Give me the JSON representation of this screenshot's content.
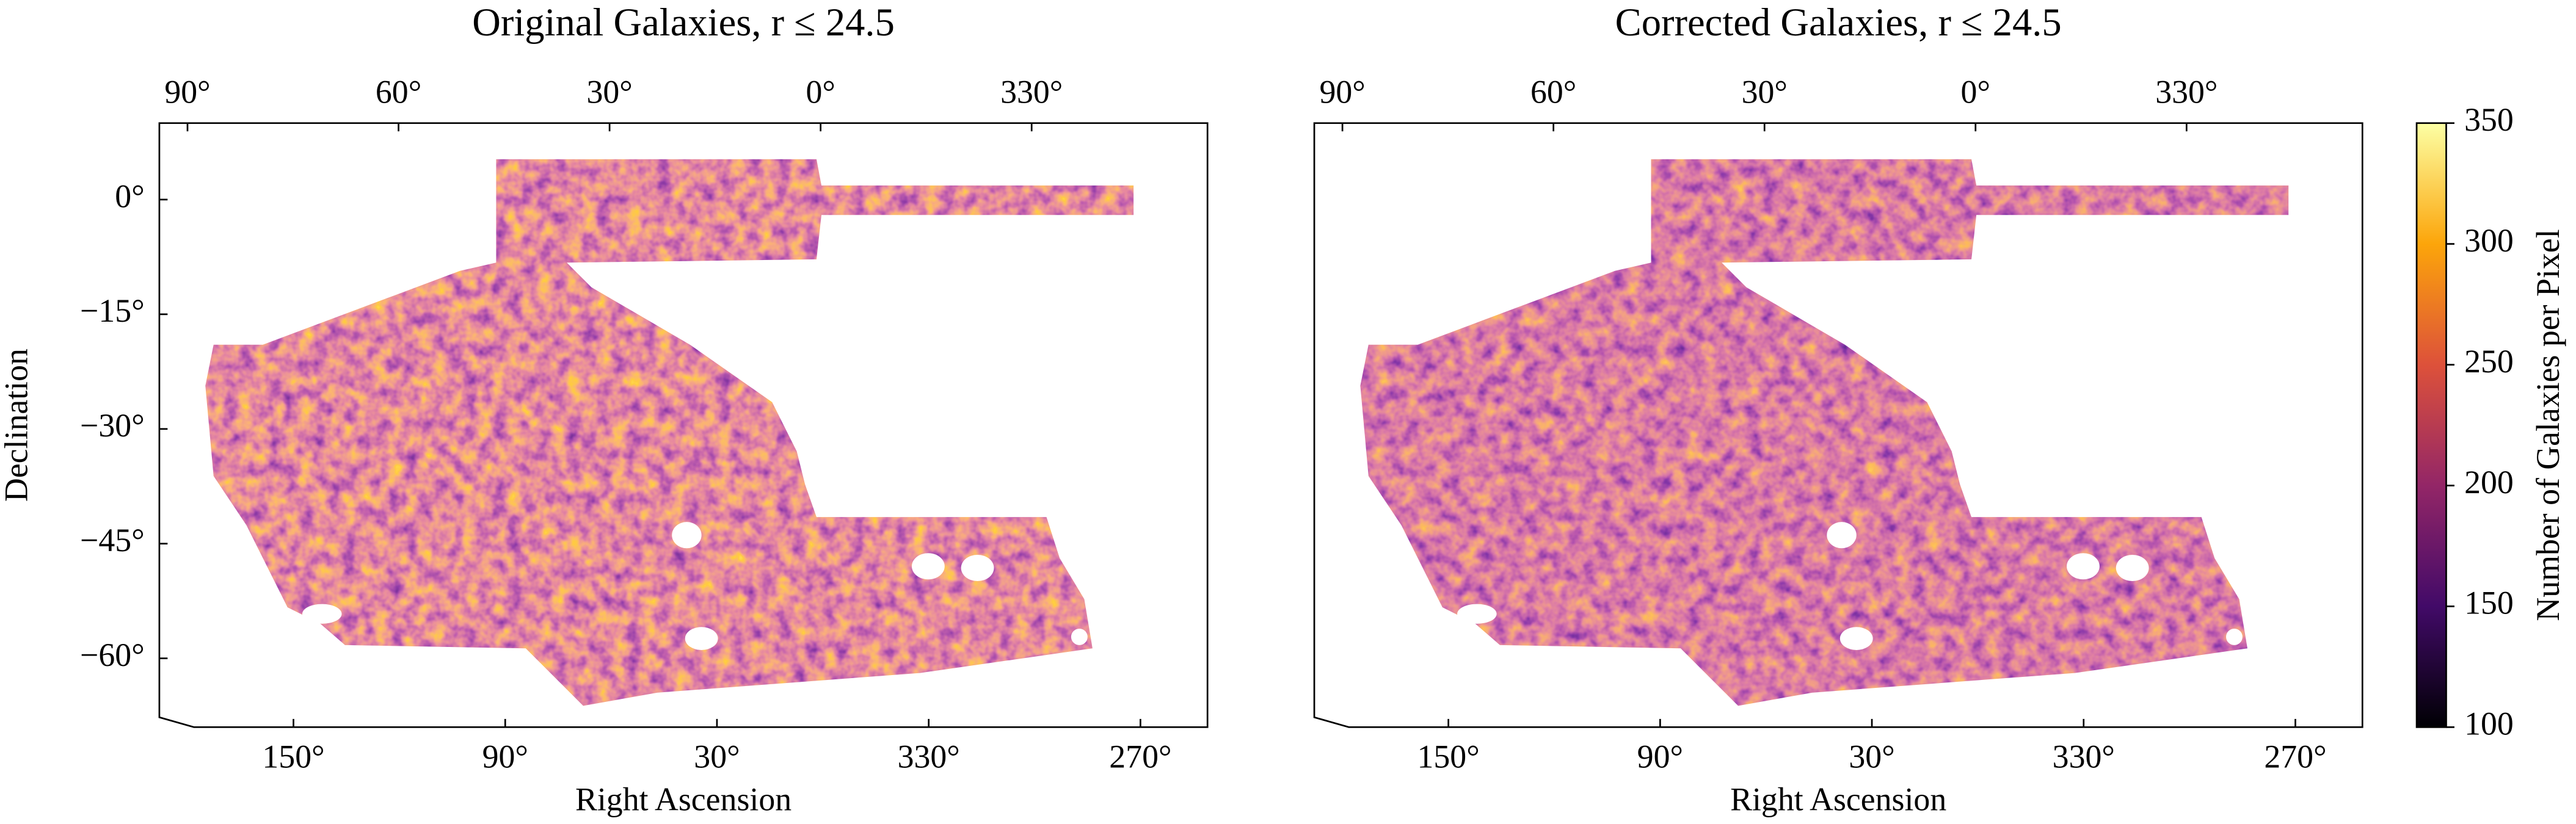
{
  "chart_data": [
    {
      "type": "map",
      "title": "Original Galaxies, r ≤ 24.5",
      "xlabel": "Right Ascension",
      "ylabel": "Declination",
      "xlim": [
        188,
        251
      ],
      "xticks": [
        {
          "value": 150,
          "label": "150°"
        },
        {
          "value": 90,
          "label": "90°"
        },
        {
          "value": 30,
          "label": "30°"
        },
        {
          "value": 330,
          "label": "330°"
        },
        {
          "value": 270,
          "label": "270°"
        }
      ],
      "x2lim": [
        94,
        305
      ],
      "x2ticks": [
        {
          "value": 90,
          "label": "90°"
        },
        {
          "value": 60,
          "label": "60°"
        },
        {
          "value": 30,
          "label": "30°"
        },
        {
          "value": 0,
          "label": "0°"
        },
        {
          "value": 330,
          "label": "330°"
        }
      ],
      "ylim": [
        -69,
        10
      ],
      "yticks": [
        {
          "value": 0,
          "label": "0°"
        },
        {
          "value": -15,
          "label": "−15°"
        },
        {
          "value": -30,
          "label": "−30°"
        },
        {
          "value": -45,
          "label": "−45°"
        },
        {
          "value": -60,
          "label": "−60°"
        }
      ]
    },
    {
      "type": "map",
      "title": "Corrected Galaxies, r ≤ 24.5",
      "xlabel": "Right Ascension",
      "xlim": [
        188,
        251
      ],
      "xticks": [
        {
          "value": 150,
          "label": "150°"
        },
        {
          "value": 90,
          "label": "90°"
        },
        {
          "value": 30,
          "label": "30°"
        },
        {
          "value": 330,
          "label": "330°"
        },
        {
          "value": 270,
          "label": "270°"
        }
      ],
      "x2lim": [
        94,
        305
      ],
      "x2ticks": [
        {
          "value": 90,
          "label": "90°"
        },
        {
          "value": 60,
          "label": "60°"
        },
        {
          "value": 30,
          "label": "30°"
        },
        {
          "value": 0,
          "label": "0°"
        },
        {
          "value": 330,
          "label": "330°"
        }
      ],
      "ylim": [
        -69,
        10
      ],
      "colorbar": {
        "label": "Number of Galaxies per Pixel",
        "lim": [
          100,
          350
        ],
        "ticks": [
          100,
          150,
          200,
          250,
          300,
          350
        ],
        "cmap": "inferno"
      }
    }
  ]
}
